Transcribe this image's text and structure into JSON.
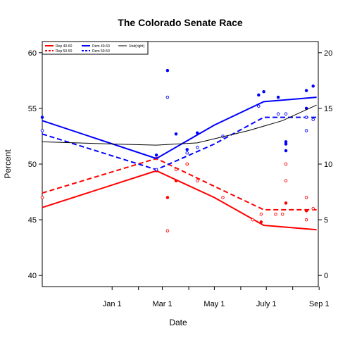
{
  "chart_data": {
    "type": "line",
    "title": "The Colorado Senate Race",
    "xlabel": "Date",
    "ylabel": "Percent",
    "x_unit": "days since Jan 1",
    "x_range": [
      -82,
      242
    ],
    "xticks": [
      {
        "x": 0,
        "label": "Jan 1"
      },
      {
        "x": 31,
        "label": ""
      },
      {
        "x": 59,
        "label": "Mar 1"
      },
      {
        "x": 90,
        "label": ""
      },
      {
        "x": 120,
        "label": "May 1"
      },
      {
        "x": 151,
        "label": ""
      },
      {
        "x": 181,
        "label": "July 1"
      },
      {
        "x": 212,
        "label": ""
      },
      {
        "x": 243,
        "label": "Sep 1"
      },
      {
        "x": 273,
        "label": ""
      }
    ],
    "y_range": [
      39,
      61
    ],
    "yticks": [
      40,
      45,
      50,
      55,
      60
    ],
    "y2_range": [
      -1,
      21
    ],
    "y2ticks": [
      0,
      5,
      10,
      15,
      20
    ],
    "grid": false,
    "legend_position": "top-left",
    "series": [
      {
        "name": "Rep 40-60",
        "color": "#ff0000",
        "dash": "solid",
        "width": 2,
        "axis": "left",
        "line": [
          [
            -82,
            46.1
          ],
          [
            52,
            49.4
          ],
          [
            120,
            47.0
          ],
          [
            178,
            44.5
          ],
          [
            240,
            44.1
          ]
        ],
        "points": [
          [
            52,
            49.4
          ],
          [
            65,
            47.0
          ],
          [
            75,
            48.5
          ],
          [
            88,
            50.0
          ],
          [
            175,
            44.8
          ],
          [
            204,
            46.5
          ],
          [
            228,
            45.8
          ]
        ],
        "marker": "filled"
      },
      {
        "name": "Rep 50-50",
        "color": "#ff0000",
        "dash": "dashed",
        "width": 2,
        "axis": "left",
        "line": [
          [
            -82,
            47.4
          ],
          [
            52,
            50.5
          ],
          [
            120,
            48.0
          ],
          [
            178,
            45.9
          ],
          [
            240,
            45.9
          ]
        ],
        "points": [
          [
            -82,
            47.0
          ],
          [
            52,
            50.5
          ],
          [
            65,
            44.0
          ],
          [
            75,
            49.5
          ],
          [
            88,
            50.0
          ],
          [
            100,
            48.5
          ],
          [
            130,
            47.0
          ],
          [
            165,
            45.0
          ],
          [
            175,
            45.5
          ],
          [
            192,
            45.5
          ],
          [
            200,
            45.5
          ],
          [
            204,
            48.5
          ],
          [
            204,
            50.0
          ],
          [
            228,
            45.0
          ],
          [
            228,
            47.0
          ],
          [
            236,
            46.0
          ]
        ],
        "marker": "open"
      },
      {
        "name": "Dem 40-60",
        "color": "#0000ff",
        "dash": "solid",
        "width": 2,
        "axis": "left",
        "line": [
          [
            -82,
            53.9
          ],
          [
            52,
            50.5
          ],
          [
            120,
            53.5
          ],
          [
            178,
            55.6
          ],
          [
            240,
            56.0
          ]
        ],
        "points": [
          [
            -82,
            54.2
          ],
          [
            52,
            50.8
          ],
          [
            65,
            58.4
          ],
          [
            75,
            52.7
          ],
          [
            88,
            51.3
          ],
          [
            100,
            52.8
          ],
          [
            172,
            56.2
          ],
          [
            178,
            56.5
          ],
          [
            195,
            56.0
          ],
          [
            204,
            51.2
          ],
          [
            204,
            51.8
          ],
          [
            204,
            52.0
          ],
          [
            228,
            55.0
          ],
          [
            228,
            56.6
          ],
          [
            236,
            57.0
          ]
        ],
        "marker": "filled"
      },
      {
        "name": "Dem 50-50",
        "color": "#0000ff",
        "dash": "dashed",
        "width": 2,
        "axis": "left",
        "line": [
          [
            -82,
            52.7
          ],
          [
            52,
            49.5
          ],
          [
            120,
            51.8
          ],
          [
            178,
            54.2
          ],
          [
            240,
            54.2
          ]
        ],
        "points": [
          [
            -82,
            53.0
          ],
          [
            52,
            49.5
          ],
          [
            65,
            56.0
          ],
          [
            88,
            51.0
          ],
          [
            100,
            51.5
          ],
          [
            130,
            52.5
          ],
          [
            172,
            55.2
          ],
          [
            195,
            54.5
          ],
          [
            204,
            54.5
          ],
          [
            228,
            53.0
          ],
          [
            228,
            54.2
          ],
          [
            236,
            54.0
          ]
        ],
        "marker": "open"
      },
      {
        "name": "Und(right)",
        "color": "#000000",
        "dash": "solid",
        "width": 1,
        "axis": "right",
        "line": [
          [
            -82,
            12.0
          ],
          [
            0,
            11.8
          ],
          [
            52,
            11.7
          ],
          [
            100,
            11.9
          ],
          [
            160,
            13.0
          ],
          [
            200,
            13.9
          ],
          [
            240,
            15.3
          ]
        ]
      }
    ]
  }
}
